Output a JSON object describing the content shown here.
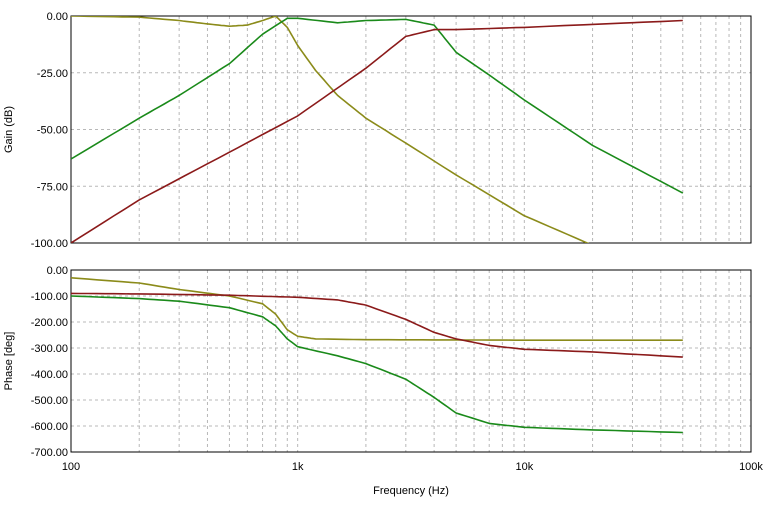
{
  "chart_data": [
    {
      "type": "line",
      "ylabel": "Gain (dB)",
      "xscale": "log",
      "xlim": [
        100,
        100000
      ],
      "ylim": [
        -100,
        0
      ],
      "yticks": [
        0,
        -25,
        -50,
        -75,
        -100
      ],
      "ytick_labels": [
        "0.00",
        "-25.00",
        "-50.00",
        "-75.00",
        "-100.00"
      ],
      "grid": true,
      "series": [
        {
          "color": "#8b8b1a",
          "x": [
            100,
            200,
            300,
            400,
            500,
            600,
            700,
            800,
            900,
            1000,
            1200,
            1500,
            2000,
            3000,
            5000,
            10000,
            20000
          ],
          "y": [
            0,
            -0.5,
            -2,
            -3.5,
            -4.5,
            -4,
            -2,
            0,
            -5,
            -13,
            -24,
            -35,
            -45,
            -56,
            -70,
            -88,
            -101
          ]
        },
        {
          "color": "#1a8a1a",
          "x": [
            100,
            200,
            300,
            500,
            700,
            900,
            1000,
            1500,
            2000,
            3000,
            4000,
            5000,
            7000,
            10000,
            20000,
            50000
          ],
          "y": [
            -63,
            -45,
            -35,
            -21,
            -8,
            -1,
            -1,
            -3,
            -2,
            -1.5,
            -4,
            -16,
            -26,
            -37,
            -57,
            -78
          ]
        },
        {
          "color": "#8b1a1a",
          "x": [
            100,
            200,
            500,
            1000,
            2000,
            3000,
            4000,
            5000,
            10000,
            50000
          ],
          "y": [
            -100,
            -81,
            -60,
            -44,
            -23,
            -9,
            -6,
            -6,
            -5,
            -2
          ]
        }
      ]
    },
    {
      "type": "line",
      "xlabel": "Frequency (Hz)",
      "ylabel": "Phase [deg]",
      "xscale": "log",
      "xlim": [
        100,
        100000
      ],
      "ylim": [
        -700,
        0
      ],
      "yticks": [
        0,
        -100,
        -200,
        -300,
        -400,
        -500,
        -600,
        -700
      ],
      "ytick_labels": [
        "0.00",
        "-100.00",
        "-200.00",
        "-300.00",
        "-400.00",
        "-500.00",
        "-600.00",
        "-700.00"
      ],
      "xticks": [
        100,
        1000,
        10000,
        100000
      ],
      "xtick_labels": [
        "100",
        "1k",
        "10k",
        "100k"
      ],
      "grid": true,
      "series": [
        {
          "color": "#8b8b1a",
          "x": [
            100,
            200,
            300,
            500,
            700,
            800,
            900,
            1000,
            1200,
            2000,
            5000,
            10000,
            50000
          ],
          "y": [
            -30,
            -50,
            -75,
            -100,
            -130,
            -170,
            -230,
            -255,
            -265,
            -268,
            -269,
            -270,
            -270
          ]
        },
        {
          "color": "#1a8a1a",
          "x": [
            100,
            200,
            300,
            500,
            700,
            800,
            900,
            1000,
            1500,
            2000,
            3000,
            4000,
            5000,
            7000,
            10000,
            20000,
            50000
          ],
          "y": [
            -100,
            -110,
            -120,
            -145,
            -180,
            -215,
            -265,
            -295,
            -330,
            -360,
            -420,
            -490,
            -550,
            -590,
            -605,
            -615,
            -625
          ]
        },
        {
          "color": "#8b1a1a",
          "x": [
            100,
            200,
            500,
            1000,
            1500,
            2000,
            3000,
            4000,
            5000,
            7000,
            10000,
            20000,
            50000
          ],
          "y": [
            -90,
            -92,
            -97,
            -105,
            -115,
            -135,
            -190,
            -240,
            -265,
            -290,
            -305,
            -315,
            -335
          ]
        }
      ]
    }
  ]
}
